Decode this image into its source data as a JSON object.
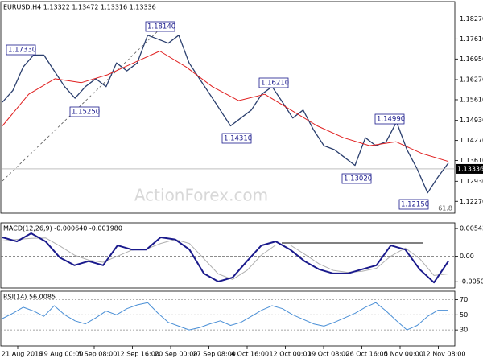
{
  "chart_data": {
    "type": "trading-chart",
    "title": "EURUSD,H4  1.13322 1.13472 1.13316 1.13336",
    "watermark": "ActionForex.com",
    "current_price": 1.13336,
    "fib_label": "61.8",
    "categories": [
      "21 Aug 2018",
      "29 Aug 00:00",
      "5 Sep 08:00",
      "12 Sep 16:00",
      "20 Sep 00:00",
      "27 Sep 08:00",
      "4 Oct 16:00",
      "12 Oct 00:00",
      "19 Oct 08:00",
      "26 Oct 16:00",
      "5 Nov 00:00",
      "12 Nov 08:00"
    ],
    "price": {
      "color": "#2b3f6e",
      "values": [
        1.1553,
        1.1591,
        1.1669,
        1.1708,
        1.1708,
        1.1656,
        1.1604,
        1.1566,
        1.1604,
        1.163,
        1.1604,
        1.1682,
        1.1656,
        1.1682,
        1.1773,
        1.176,
        1.1747,
        1.1773,
        1.1682,
        1.163,
        1.1579,
        1.1527,
        1.1475,
        1.1501,
        1.1527,
        1.1579,
        1.1604,
        1.1553,
        1.1501,
        1.1527,
        1.1462,
        1.141,
        1.1397,
        1.1371,
        1.1345,
        1.1436,
        1.141,
        1.1423,
        1.1488,
        1.1397,
        1.1333,
        1.1255,
        1.1307,
        1.1353
      ]
    },
    "moving_average": {
      "color": "#e02020",
      "values": [
        1.1475,
        1.1579,
        1.163,
        1.1617,
        1.1643,
        1.1682,
        1.1721,
        1.1669,
        1.1604,
        1.1558,
        1.1579,
        1.1527,
        1.1475,
        1.1436,
        1.141,
        1.1423,
        1.1384,
        1.1358
      ]
    },
    "annotations": [
      "1.18140",
      "1.17330",
      "1.15250",
      "1.16210",
      "1.14310",
      "1.14990",
      "1.13020",
      "1.12150"
    ],
    "ylim": [
      1.1188,
      1.1881
    ],
    "yticks": [
      {
        "value": 1.1827,
        "label": "1.18270"
      },
      {
        "value": 1.1761,
        "label": "1.17610"
      },
      {
        "value": 1.1695,
        "label": "1.16950"
      },
      {
        "value": 1.1627,
        "label": "1.16270"
      },
      {
        "value": 1.1561,
        "label": "1.15610"
      },
      {
        "value": 1.1493,
        "label": "1.14930"
      },
      {
        "value": 1.1427,
        "label": "1.14270"
      },
      {
        "value": 1.1361,
        "label": "1.13610"
      },
      {
        "value": 1.1293,
        "label": "1.12930"
      },
      {
        "value": 1.1227,
        "label": "1.12270"
      }
    ],
    "macd": {
      "title": "MACD(12,26,9) -0.000640 -0.001980",
      "ylim": [
        -0.0058,
        0.0064
      ],
      "yticks": [
        0.005434,
        {
          "value": 0,
          "label": "0.00"
        },
        -0.005046
      ],
      "series": [
        {
          "color": "#1a1a8c",
          "values": [
            0.0037,
            0.0029,
            0.0045,
            0.0029,
            -0.0003,
            -0.0018,
            -0.001,
            -0.0018,
            0.0021,
            0.0013,
            0.0013,
            0.0037,
            0.0033,
            0.0013,
            -0.0034,
            -0.005,
            -0.0042,
            -0.001,
            0.0021,
            0.0029,
            0.0013,
            -0.001,
            -0.0026,
            -0.0034,
            -0.0034,
            -0.0026,
            -0.0018,
            0.0021,
            0.0013,
            -0.0026,
            -0.0052,
            -0.001
          ]
        },
        {
          "color": "#b0b0b0",
          "values": [
            0.003,
            0.0033,
            0.0035,
            0.0036,
            0.002,
            0.0002,
            -0.0008,
            -0.0012,
            0.0,
            0.0012,
            0.0014,
            0.0025,
            0.0033,
            0.0025,
            -0.0005,
            -0.0035,
            -0.0046,
            -0.0028,
            0.0002,
            0.0022,
            0.0022,
            0.0004,
            -0.0015,
            -0.0028,
            -0.0032,
            -0.003,
            -0.0024,
            0.0,
            0.0016,
            -0.0005,
            -0.0038,
            -0.0035
          ]
        }
      ]
    },
    "rsi": {
      "title": "RSI(14) 56.0085",
      "color": "#4a8fd6",
      "ylim": [
        10,
        80
      ],
      "yticks": [
        70,
        50,
        30
      ],
      "values": [
        45,
        52,
        60,
        55,
        48,
        62,
        50,
        42,
        38,
        46,
        55,
        50,
        58,
        63,
        66,
        52,
        40,
        35,
        30,
        33,
        38,
        42,
        36,
        40,
        48,
        56,
        62,
        58,
        50,
        44,
        38,
        35,
        40,
        46,
        52,
        60,
        66,
        55,
        42,
        30,
        36,
        48,
        56,
        56
      ]
    }
  }
}
